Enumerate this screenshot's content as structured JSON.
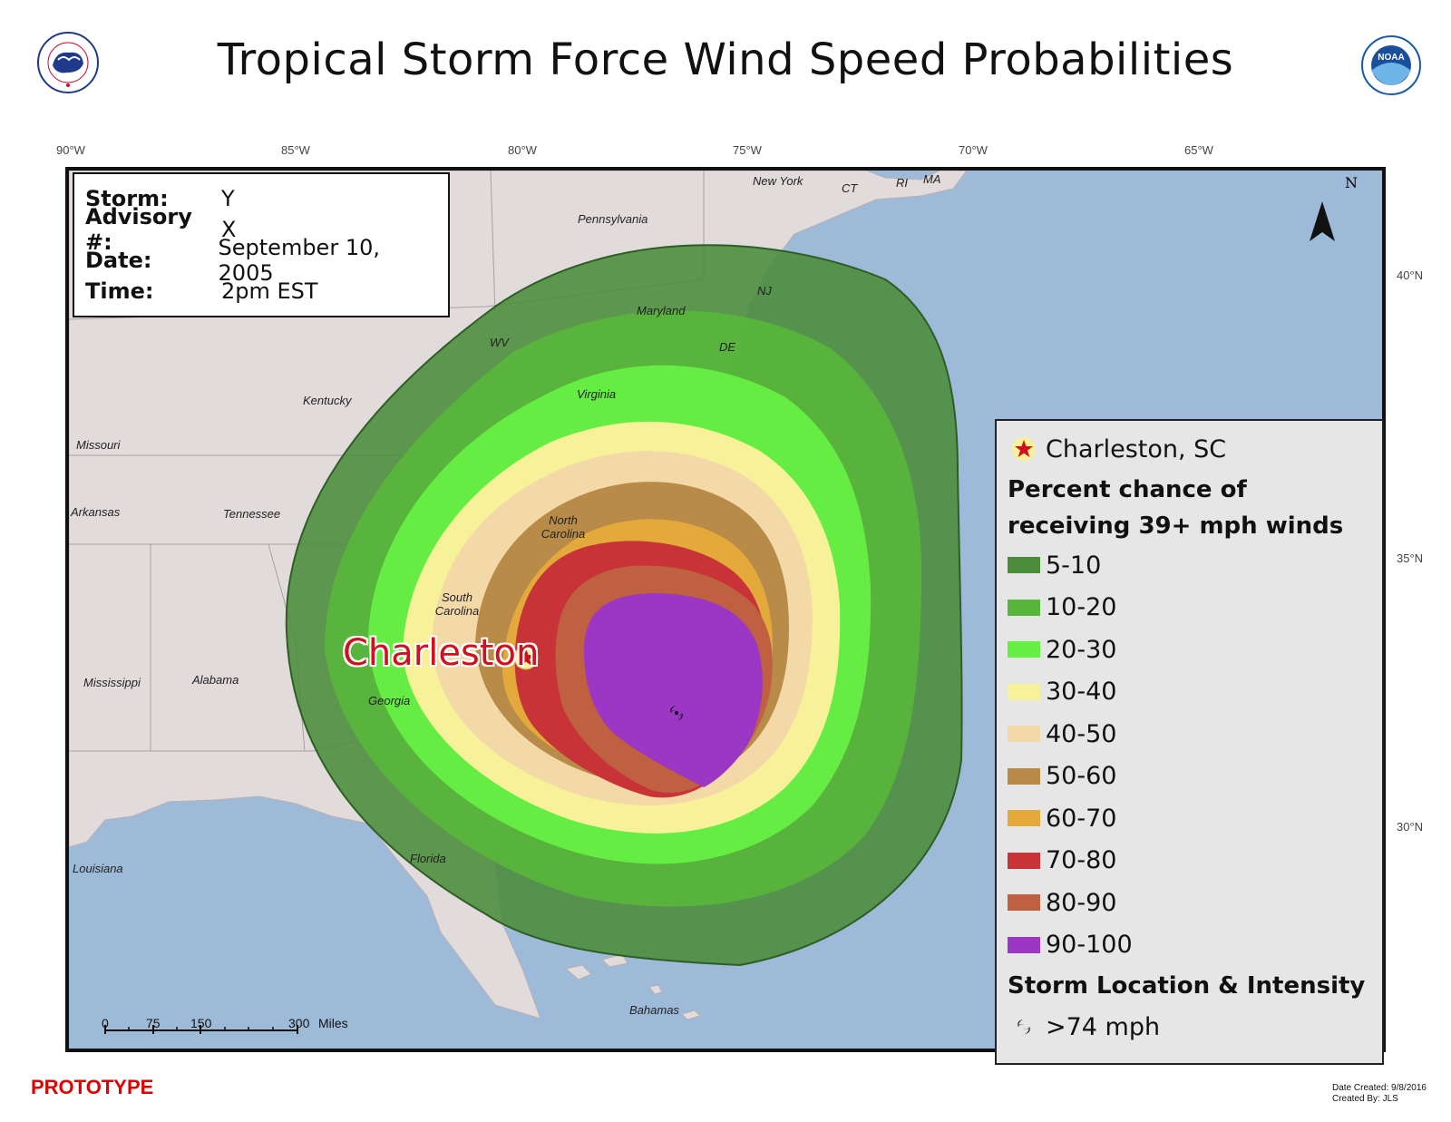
{
  "title": "Tropical Storm Force Wind Speed Probabilities",
  "longitude_labels": [
    "90°W",
    "85°W",
    "80°W",
    "75°W",
    "70°W",
    "65°W"
  ],
  "latitude_labels": [
    "40°N",
    "35°N",
    "30°N"
  ],
  "info": {
    "storm_key": "Storm:",
    "storm_val": "Y",
    "advisory_key": "Advisory #:",
    "advisory_val": "X",
    "date_key": "Date:",
    "date_val": "September 10, 2005",
    "time_key": "Time:",
    "time_val": "2pm EST"
  },
  "map_labels": {
    "new_york": "New York",
    "ct": "CT",
    "ri": "RI",
    "ma": "MA",
    "pennsylvania": "Pennsylvania",
    "nj": "NJ",
    "maryland": "Maryland",
    "de": "DE",
    "wv": "WV",
    "virginia": "Virginia",
    "kentucky": "Kentucky",
    "missouri": "Missouri",
    "arkansas": "Arkansas",
    "tennessee": "Tennessee",
    "north_carolina": "North Carolina",
    "south_carolina": "South Carolina",
    "georgia": "Georgia",
    "alabama": "Alabama",
    "mississippi": "Mississippi",
    "florida": "Florida",
    "louisiana": "Louisiana",
    "bahamas": "Bahamas"
  },
  "city_label": "Charleston",
  "north_label": "N",
  "scale": {
    "t0": "0",
    "t1": "75",
    "t2": "150",
    "t3": "300",
    "unit": "Miles"
  },
  "legend": {
    "location": "Charleston, SC",
    "heading": "Percent chance of receiving 39+ mph winds",
    "items": [
      {
        "label": "5-10",
        "color": "#4a8c3a"
      },
      {
        "label": "10-20",
        "color": "#59b63c"
      },
      {
        "label": "20-30",
        "color": "#66f043"
      },
      {
        "label": "30-40",
        "color": "#f7f29a"
      },
      {
        "label": "40-50",
        "color": "#f3d9a7"
      },
      {
        "label": "50-60",
        "color": "#b98b48"
      },
      {
        "label": "60-70",
        "color": "#e4a93b"
      },
      {
        "label": "70-80",
        "color": "#c83338"
      },
      {
        "label": "80-90",
        "color": "#bf6040"
      },
      {
        "label": "90-100",
        "color": "#9c36c4"
      }
    ],
    "storm_heading": "Storm Location & Intensity",
    "storm_item": ">74 mph"
  },
  "prototype": "PROTOTYPE",
  "credits": {
    "date_created": "Date Created: 9/8/2016",
    "created_by": "Created By: JLS"
  }
}
